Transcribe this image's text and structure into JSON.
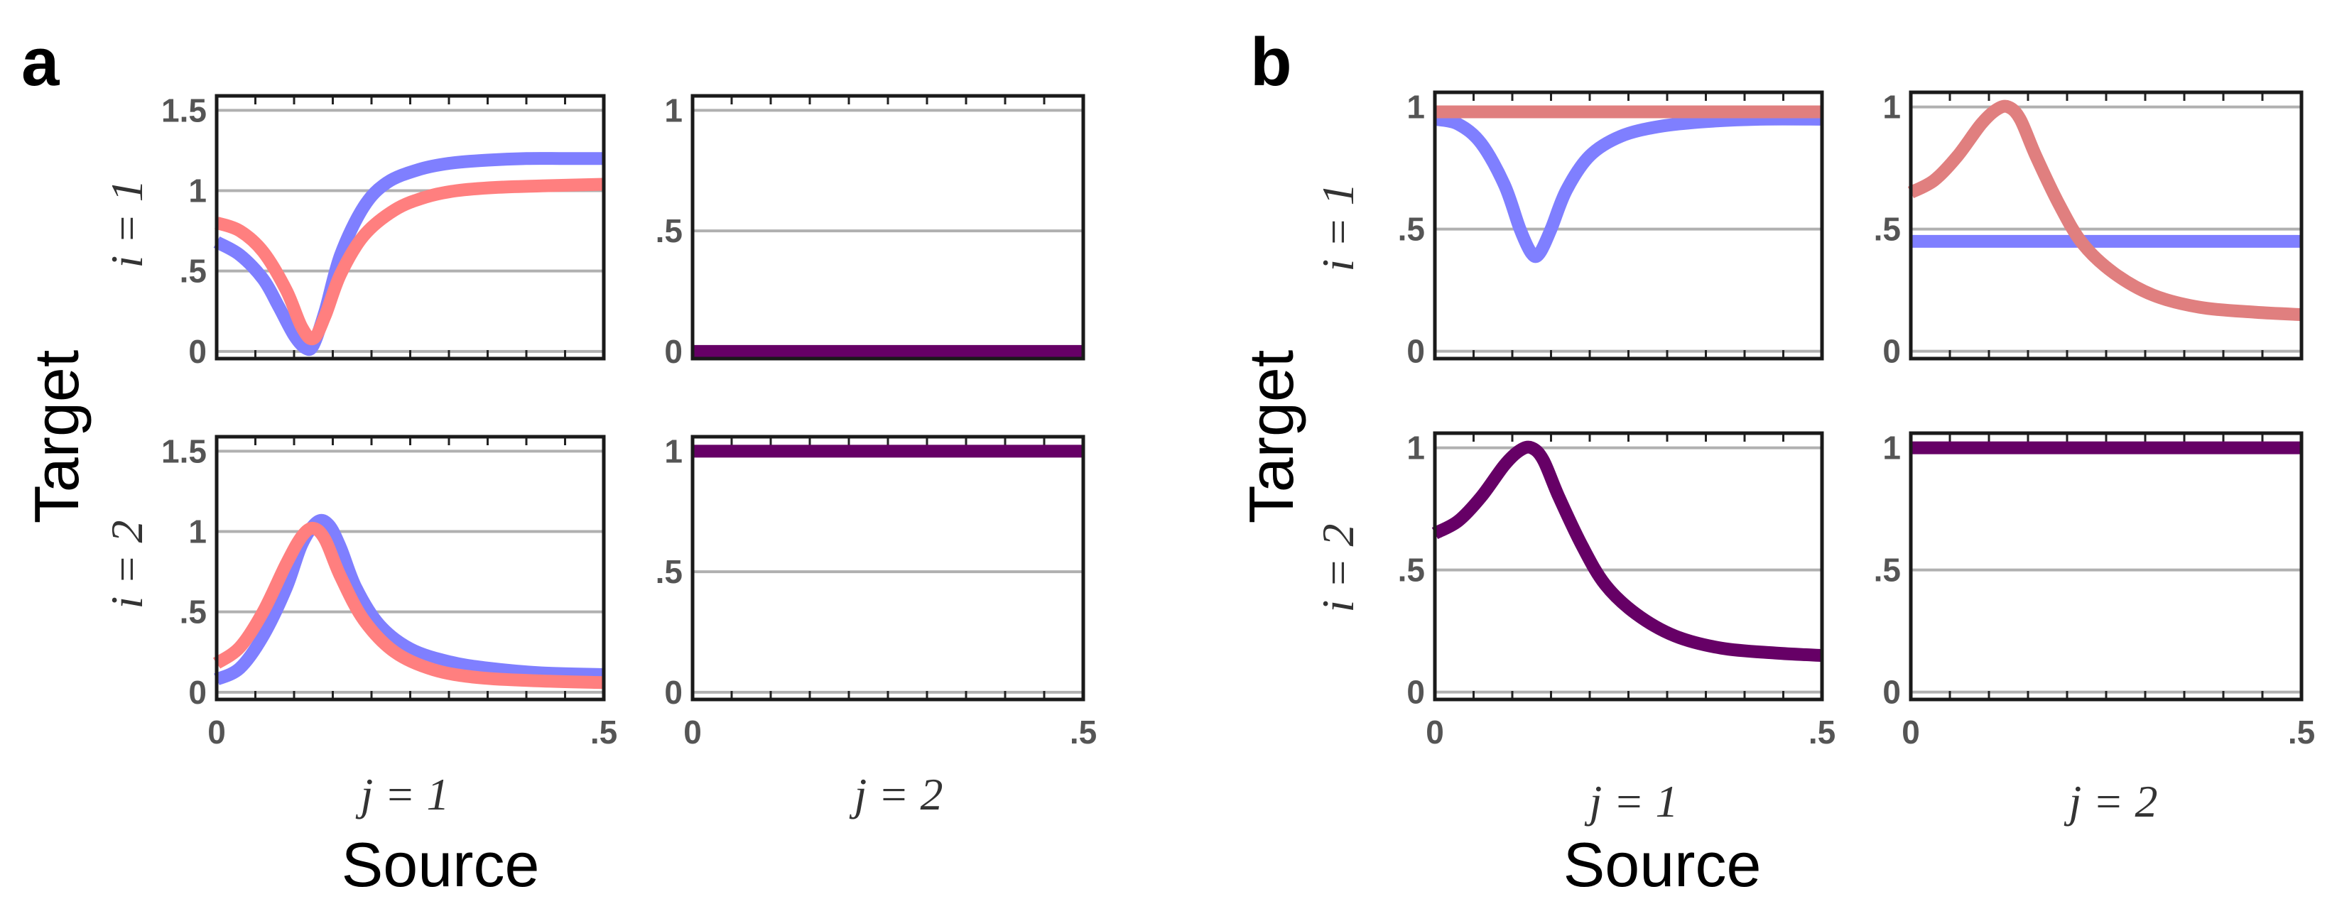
{
  "figure": {
    "panels": [
      {
        "label": "a",
        "ylabel": "Target",
        "xlabel": "Source",
        "row_labels": [
          "i = 1",
          "i = 2"
        ],
        "col_labels": [
          "j = 1",
          "j = 2"
        ]
      },
      {
        "label": "b",
        "ylabel": "Target",
        "xlabel": "Source",
        "row_labels": [
          "i = 1",
          "i = 2"
        ],
        "col_labels": [
          "j = 1",
          "j = 2"
        ]
      }
    ]
  },
  "colors": {
    "blue": "#7f7fff",
    "red": "#ff7f7f",
    "salmon": "#e07f7f",
    "purple": "#660066",
    "grid": "#b0b0b0"
  },
  "chart_data": [
    {
      "type": "line",
      "panel": "a",
      "row": 1,
      "col": 1,
      "xlim": [
        0,
        0.5
      ],
      "ylim": [
        0,
        1.5
      ],
      "yticks": [
        {
          "v": 0,
          "label": "0"
        },
        {
          "v": 0.5,
          "label": ".5"
        },
        {
          "v": 1,
          "label": "1"
        },
        {
          "v": 1.5,
          "label": "1.5"
        }
      ],
      "xticks": [],
      "series": [
        {
          "name": "blue",
          "color": "#7f7fff",
          "x": [
            0,
            0.03,
            0.06,
            0.08,
            0.1,
            0.115,
            0.125,
            0.14,
            0.16,
            0.19,
            0.22,
            0.26,
            0.3,
            0.35,
            0.4,
            0.45,
            0.5
          ],
          "y": [
            0.68,
            0.6,
            0.45,
            0.28,
            0.1,
            0.02,
            0.04,
            0.25,
            0.6,
            0.9,
            1.05,
            1.13,
            1.17,
            1.19,
            1.2,
            1.2,
            1.2
          ]
        },
        {
          "name": "red",
          "color": "#ff7f7f",
          "x": [
            0,
            0.03,
            0.06,
            0.09,
            0.11,
            0.125,
            0.14,
            0.16,
            0.19,
            0.23,
            0.27,
            0.31,
            0.36,
            0.42,
            0.5
          ],
          "y": [
            0.8,
            0.75,
            0.62,
            0.38,
            0.15,
            0.08,
            0.22,
            0.48,
            0.72,
            0.88,
            0.96,
            1.0,
            1.02,
            1.03,
            1.04
          ]
        }
      ]
    },
    {
      "type": "line",
      "panel": "a",
      "row": 1,
      "col": 2,
      "xlim": [
        0,
        0.5
      ],
      "ylim": [
        0,
        1
      ],
      "yticks": [
        {
          "v": 0,
          "label": "0"
        },
        {
          "v": 0.5,
          "label": ".5"
        },
        {
          "v": 1,
          "label": "1"
        }
      ],
      "xticks": [],
      "series": [
        {
          "name": "purple",
          "color": "#660066",
          "x": [
            0,
            0.5
          ],
          "y": [
            0,
            0
          ]
        }
      ]
    },
    {
      "type": "line",
      "panel": "a",
      "row": 2,
      "col": 1,
      "xlim": [
        0,
        0.5
      ],
      "ylim": [
        0,
        1.5
      ],
      "yticks": [
        {
          "v": 0,
          "label": "0"
        },
        {
          "v": 0.5,
          "label": ".5"
        },
        {
          "v": 1,
          "label": "1"
        },
        {
          "v": 1.5,
          "label": "1.5"
        }
      ],
      "xticks": [
        {
          "v": 0,
          "label": "0"
        },
        {
          "v": 0.5,
          "label": ".5"
        }
      ],
      "series": [
        {
          "name": "blue",
          "color": "#7f7fff",
          "x": [
            0,
            0.03,
            0.06,
            0.09,
            0.11,
            0.13,
            0.145,
            0.16,
            0.18,
            0.21,
            0.25,
            0.3,
            0.35,
            0.42,
            0.5
          ],
          "y": [
            0.08,
            0.15,
            0.35,
            0.65,
            0.92,
            1.06,
            1.04,
            0.9,
            0.65,
            0.42,
            0.27,
            0.19,
            0.15,
            0.12,
            0.11
          ]
        },
        {
          "name": "red",
          "color": "#ff7f7f",
          "x": [
            0,
            0.03,
            0.06,
            0.09,
            0.11,
            0.125,
            0.14,
            0.16,
            0.19,
            0.23,
            0.28,
            0.34,
            0.42,
            0.5
          ],
          "y": [
            0.18,
            0.28,
            0.5,
            0.8,
            0.97,
            1.02,
            0.95,
            0.72,
            0.45,
            0.25,
            0.14,
            0.09,
            0.07,
            0.06
          ]
        }
      ]
    },
    {
      "type": "line",
      "panel": "a",
      "row": 2,
      "col": 2,
      "xlim": [
        0,
        0.5
      ],
      "ylim": [
        0,
        1
      ],
      "yticks": [
        {
          "v": 0,
          "label": "0"
        },
        {
          "v": 0.5,
          "label": ".5"
        },
        {
          "v": 1,
          "label": "1"
        }
      ],
      "xticks": [
        {
          "v": 0,
          "label": "0"
        },
        {
          "v": 0.5,
          "label": ".5"
        }
      ],
      "series": [
        {
          "name": "purple",
          "color": "#660066",
          "x": [
            0,
            0.5
          ],
          "y": [
            1,
            1
          ]
        }
      ]
    },
    {
      "type": "line",
      "panel": "b",
      "row": 1,
      "col": 1,
      "xlim": [
        0,
        0.5
      ],
      "ylim": [
        0,
        1
      ],
      "yticks": [
        {
          "v": 0,
          "label": "0"
        },
        {
          "v": 0.5,
          "label": ".5"
        },
        {
          "v": 1,
          "label": "1"
        }
      ],
      "xticks": [],
      "series": [
        {
          "name": "blue",
          "color": "#7f7fff",
          "x": [
            0,
            0.03,
            0.06,
            0.09,
            0.11,
            0.125,
            0.135,
            0.15,
            0.17,
            0.2,
            0.24,
            0.29,
            0.35,
            0.42,
            0.5
          ],
          "y": [
            0.95,
            0.93,
            0.85,
            0.68,
            0.5,
            0.4,
            0.4,
            0.5,
            0.66,
            0.8,
            0.88,
            0.92,
            0.94,
            0.95,
            0.95
          ]
        },
        {
          "name": "salmon",
          "color": "#e07f7f",
          "x": [
            0,
            0.5
          ],
          "y": [
            0.98,
            0.98
          ]
        }
      ]
    },
    {
      "type": "line",
      "panel": "b",
      "row": 1,
      "col": 2,
      "xlim": [
        0,
        0.5
      ],
      "ylim": [
        0,
        1
      ],
      "yticks": [
        {
          "v": 0,
          "label": "0"
        },
        {
          "v": 0.5,
          "label": ".5"
        },
        {
          "v": 1,
          "label": "1"
        }
      ],
      "xticks": [],
      "series": [
        {
          "name": "blue",
          "color": "#7f7fff",
          "x": [
            0,
            0.5
          ],
          "y": [
            0.45,
            0.45
          ]
        },
        {
          "name": "salmon",
          "color": "#e07f7f",
          "x": [
            0,
            0.03,
            0.06,
            0.09,
            0.11,
            0.125,
            0.14,
            0.16,
            0.19,
            0.22,
            0.26,
            0.31,
            0.37,
            0.44,
            0.5
          ],
          "y": [
            0.65,
            0.7,
            0.8,
            0.93,
            0.99,
            1.0,
            0.95,
            0.8,
            0.6,
            0.44,
            0.32,
            0.23,
            0.18,
            0.16,
            0.15
          ]
        }
      ]
    },
    {
      "type": "line",
      "panel": "b",
      "row": 2,
      "col": 1,
      "xlim": [
        0,
        0.5
      ],
      "ylim": [
        0,
        1
      ],
      "yticks": [
        {
          "v": 0,
          "label": "0"
        },
        {
          "v": 0.5,
          "label": ".5"
        },
        {
          "v": 1,
          "label": "1"
        }
      ],
      "xticks": [
        {
          "v": 0,
          "label": "0"
        },
        {
          "v": 0.5,
          "label": ".5"
        }
      ],
      "series": [
        {
          "name": "purple",
          "color": "#660066",
          "x": [
            0,
            0.03,
            0.06,
            0.09,
            0.11,
            0.125,
            0.14,
            0.16,
            0.19,
            0.22,
            0.26,
            0.31,
            0.37,
            0.44,
            0.5
          ],
          "y": [
            0.65,
            0.7,
            0.8,
            0.93,
            0.99,
            1.0,
            0.95,
            0.8,
            0.6,
            0.44,
            0.32,
            0.23,
            0.18,
            0.16,
            0.15
          ]
        }
      ]
    },
    {
      "type": "line",
      "panel": "b",
      "row": 2,
      "col": 2,
      "xlim": [
        0,
        0.5
      ],
      "ylim": [
        0,
        1
      ],
      "yticks": [
        {
          "v": 0,
          "label": "0"
        },
        {
          "v": 0.5,
          "label": ".5"
        },
        {
          "v": 1,
          "label": "1"
        }
      ],
      "xticks": [
        {
          "v": 0,
          "label": "0"
        },
        {
          "v": 0.5,
          "label": ".5"
        }
      ],
      "series": [
        {
          "name": "purple",
          "color": "#660066",
          "x": [
            0,
            0.5
          ],
          "y": [
            1,
            1
          ]
        }
      ]
    }
  ]
}
